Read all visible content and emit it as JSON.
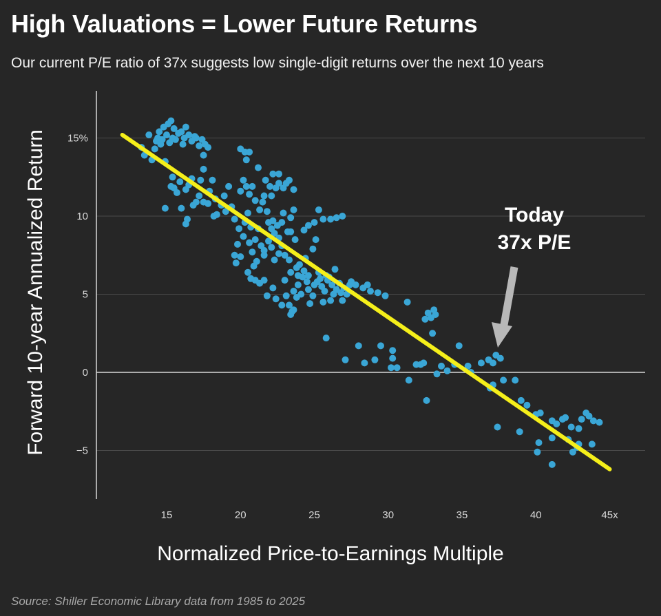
{
  "title": "High Valuations = Lower Future Returns",
  "subtitle": "Our current P/E ratio of 37x suggests low single-digit returns over the next 10 years",
  "source": "Source: Shiller Economic Library data from 1985 to 2025",
  "colors": {
    "background": "#262626",
    "points": "#3aa6d6",
    "trendline": "#f5ef1a",
    "arrow": "#b8b8b8",
    "grid": "#4a4a4a",
    "zero": "#d8d8d8"
  },
  "chart_data": {
    "type": "scatter",
    "xlabel": "Normalized Price-to-Earnings Multiple",
    "ylabel": "Forward 10-year Annualized Return",
    "xlim": [
      10,
      47
    ],
    "ylim": [
      -8,
      18
    ],
    "xticks": [
      {
        "value": 15,
        "label": "15"
      },
      {
        "value": 20,
        "label": "20"
      },
      {
        "value": 25,
        "label": "25"
      },
      {
        "value": 30,
        "label": "30"
      },
      {
        "value": 35,
        "label": "35"
      },
      {
        "value": 40,
        "label": "40"
      },
      {
        "value": 45,
        "label": "45x"
      }
    ],
    "yticks": [
      {
        "value": 15,
        "label": "15%"
      },
      {
        "value": 10,
        "label": "10"
      },
      {
        "value": 5,
        "label": "5"
      },
      {
        "value": 0,
        "label": "0"
      },
      {
        "value": -5,
        "label": "−5"
      }
    ],
    "grid": true,
    "trendline": {
      "x": [
        12,
        45
      ],
      "y": [
        15.2,
        -6.2
      ]
    },
    "annotations": [
      {
        "line1": "Today",
        "line2": "37x P/E",
        "x": 37,
        "y": 1.0
      }
    ],
    "points": [
      [
        13.3,
        14.4
      ],
      [
        13.5,
        13.9
      ],
      [
        13.8,
        15.2
      ],
      [
        14.0,
        13.6
      ],
      [
        14.2,
        14.3
      ],
      [
        14.3,
        14.8
      ],
      [
        14.4,
        15.0
      ],
      [
        14.5,
        15.4
      ],
      [
        14.6,
        14.6
      ],
      [
        14.7,
        14.9
      ],
      [
        14.8,
        15.7
      ],
      [
        14.9,
        13.5
      ],
      [
        15.0,
        15.2
      ],
      [
        15.1,
        15.9
      ],
      [
        15.2,
        14.7
      ],
      [
        15.3,
        16.1
      ],
      [
        15.4,
        15.0
      ],
      [
        15.5,
        15.6
      ],
      [
        15.6,
        14.9
      ],
      [
        15.8,
        15.3
      ],
      [
        16.0,
        15.4
      ],
      [
        16.1,
        14.6
      ],
      [
        16.2,
        15.0
      ],
      [
        16.3,
        15.7
      ],
      [
        16.5,
        15.2
      ],
      [
        16.7,
        14.8
      ],
      [
        16.9,
        15.1
      ],
      [
        17.0,
        15.0
      ],
      [
        17.2,
        14.5
      ],
      [
        17.4,
        14.9
      ],
      [
        17.6,
        14.6
      ],
      [
        17.8,
        14.4
      ],
      [
        17.5,
        13.9
      ],
      [
        17.5,
        13.0
      ],
      [
        17.3,
        12.3
      ],
      [
        17.2,
        11.3
      ],
      [
        17.0,
        10.9
      ],
      [
        16.7,
        12.4
      ],
      [
        16.5,
        12.0
      ],
      [
        16.3,
        11.7
      ],
      [
        15.9,
        12.2
      ],
      [
        15.7,
        11.5
      ],
      [
        15.5,
        11.8
      ],
      [
        15.4,
        12.5
      ],
      [
        15.3,
        11.9
      ],
      [
        16.0,
        10.5
      ],
      [
        16.4,
        9.8
      ],
      [
        16.8,
        10.7
      ],
      [
        14.9,
        10.5
      ],
      [
        16.3,
        9.5
      ],
      [
        17.5,
        10.9
      ],
      [
        17.9,
        11.6
      ],
      [
        18.1,
        12.3
      ],
      [
        18.3,
        11.1
      ],
      [
        18.4,
        10.1
      ],
      [
        18.7,
        10.7
      ],
      [
        18.9,
        11.3
      ],
      [
        19.0,
        10.3
      ],
      [
        18.2,
        10.0
      ],
      [
        17.8,
        10.8
      ],
      [
        19.2,
        11.9
      ],
      [
        19.4,
        10.6
      ],
      [
        19.6,
        9.8
      ],
      [
        19.9,
        9.2
      ],
      [
        19.8,
        8.2
      ],
      [
        19.6,
        7.5
      ],
      [
        19.7,
        7.0
      ],
      [
        20.0,
        7.4
      ],
      [
        20.2,
        8.7
      ],
      [
        20.3,
        9.6
      ],
      [
        20.5,
        10.2
      ],
      [
        20.7,
        9.3
      ],
      [
        20.6,
        8.3
      ],
      [
        20.8,
        7.7
      ],
      [
        21.0,
        8.5
      ],
      [
        21.2,
        9.2
      ],
      [
        21.4,
        8.1
      ],
      [
        21.6,
        7.5
      ],
      [
        21.1,
        7.1
      ],
      [
        20.9,
        6.8
      ],
      [
        20.5,
        6.4
      ],
      [
        20.7,
        6.0
      ],
      [
        21.0,
        5.9
      ],
      [
        21.3,
        5.7
      ],
      [
        21.6,
        5.9
      ],
      [
        20.0,
        11.6
      ],
      [
        20.2,
        12.3
      ],
      [
        20.4,
        11.9
      ],
      [
        20.6,
        11.4
      ],
      [
        20.8,
        11.9
      ],
      [
        21.0,
        11.0
      ],
      [
        21.3,
        10.4
      ],
      [
        21.5,
        10.9
      ],
      [
        21.6,
        11.3
      ],
      [
        21.8,
        10.3
      ],
      [
        21.9,
        9.6
      ],
      [
        22.1,
        9.2
      ],
      [
        22.3,
        8.9
      ],
      [
        22.5,
        9.4
      ],
      [
        22.6,
        8.6
      ],
      [
        22.8,
        8.1
      ],
      [
        22.6,
        7.6
      ],
      [
        22.3,
        7.2
      ],
      [
        21.6,
        7.8
      ],
      [
        21.9,
        8.4
      ],
      [
        22.1,
        8.0
      ],
      [
        20.0,
        14.3
      ],
      [
        20.3,
        14.1
      ],
      [
        20.6,
        14.1
      ],
      [
        20.4,
        13.6
      ],
      [
        21.2,
        13.1
      ],
      [
        21.7,
        12.3
      ],
      [
        22.0,
        11.9
      ],
      [
        22.4,
        11.8
      ],
      [
        22.6,
        12.1
      ],
      [
        22.9,
        11.8
      ],
      [
        23.1,
        12.1
      ],
      [
        23.3,
        12.3
      ],
      [
        23.6,
        11.7
      ],
      [
        22.2,
        12.7
      ],
      [
        22.6,
        12.7
      ],
      [
        22.1,
        11.3
      ],
      [
        23.4,
        9.9
      ],
      [
        23.6,
        10.4
      ],
      [
        23.4,
        9.0
      ],
      [
        23.7,
        8.5
      ],
      [
        23.0,
        7.5
      ],
      [
        23.3,
        7.2
      ],
      [
        22.8,
        9.6
      ],
      [
        22.2,
        9.7
      ],
      [
        22.9,
        10.2
      ],
      [
        21.8,
        4.9
      ],
      [
        22.2,
        5.4
      ],
      [
        22.4,
        4.7
      ],
      [
        22.8,
        4.3
      ],
      [
        23.1,
        4.9
      ],
      [
        23.3,
        4.3
      ],
      [
        23.5,
        3.9
      ],
      [
        23.4,
        3.7
      ],
      [
        23.6,
        4.0
      ],
      [
        23.0,
        5.9
      ],
      [
        23.4,
        6.4
      ],
      [
        23.8,
        6.7
      ],
      [
        24.0,
        6.9
      ],
      [
        24.3,
        6.5
      ],
      [
        24.6,
        6.2
      ],
      [
        24.5,
        5.8
      ],
      [
        24.2,
        6.1
      ],
      [
        23.9,
        5.6
      ],
      [
        23.6,
        5.2
      ],
      [
        23.8,
        4.8
      ],
      [
        24.1,
        5.0
      ],
      [
        24.6,
        5.3
      ],
      [
        24.9,
        4.9
      ],
      [
        25.0,
        5.6
      ],
      [
        25.2,
        5.8
      ],
      [
        25.4,
        6.0
      ],
      [
        25.5,
        5.5
      ],
      [
        25.7,
        5.2
      ],
      [
        25.9,
        5.9
      ],
      [
        26.0,
        6.1
      ],
      [
        26.2,
        5.6
      ],
      [
        26.3,
        5.0
      ],
      [
        26.5,
        5.3
      ],
      [
        26.7,
        5.7
      ],
      [
        26.8,
        5.1
      ],
      [
        27.0,
        5.4
      ],
      [
        27.2,
        5.0
      ],
      [
        27.4,
        5.6
      ],
      [
        26.1,
        4.6
      ],
      [
        25.6,
        4.5
      ],
      [
        24.7,
        4.4
      ],
      [
        26.9,
        4.6
      ],
      [
        25.3,
        6.4
      ],
      [
        25.8,
        6.2
      ],
      [
        26.4,
        6.6
      ],
      [
        27.5,
        5.8
      ],
      [
        27.8,
        5.6
      ],
      [
        28.3,
        5.4
      ],
      [
        28.6,
        5.6
      ],
      [
        28.8,
        5.2
      ],
      [
        29.3,
        5.1
      ],
      [
        29.8,
        4.9
      ],
      [
        31.3,
        4.5
      ],
      [
        32.7,
        3.8
      ],
      [
        32.9,
        3.5
      ],
      [
        33.1,
        4.0
      ],
      [
        33.2,
        3.7
      ],
      [
        32.5,
        3.4
      ],
      [
        33.0,
        2.5
      ],
      [
        32.4,
        0.6
      ],
      [
        32.2,
        0.5
      ],
      [
        33.6,
        0.4
      ],
      [
        34.0,
        0.1
      ],
      [
        33.3,
        -0.1
      ],
      [
        34.5,
        0.5
      ],
      [
        34.8,
        1.7
      ],
      [
        35.4,
        0.4
      ],
      [
        35.6,
        0.0
      ],
      [
        36.3,
        0.6
      ],
      [
        36.8,
        0.8
      ],
      [
        37.1,
        0.6
      ],
      [
        37.3,
        1.1
      ],
      [
        37.6,
        0.9
      ],
      [
        37.1,
        -0.8
      ],
      [
        37.8,
        -0.5
      ],
      [
        38.6,
        -0.5
      ],
      [
        39.0,
        -1.8
      ],
      [
        39.4,
        -2.1
      ],
      [
        40.0,
        -2.7
      ],
      [
        40.3,
        -2.6
      ],
      [
        41.1,
        -3.1
      ],
      [
        41.4,
        -3.3
      ],
      [
        41.8,
        -3.0
      ],
      [
        42.0,
        -2.9
      ],
      [
        42.4,
        -3.5
      ],
      [
        42.9,
        -3.6
      ],
      [
        43.1,
        -3.0
      ],
      [
        43.4,
        -2.6
      ],
      [
        43.6,
        -2.8
      ],
      [
        43.9,
        -3.1
      ],
      [
        44.3,
        -3.2
      ],
      [
        40.2,
        -4.5
      ],
      [
        41.1,
        -4.2
      ],
      [
        42.2,
        -4.3
      ],
      [
        42.9,
        -4.6
      ],
      [
        43.8,
        -4.6
      ],
      [
        40.1,
        -5.1
      ],
      [
        41.1,
        -5.9
      ],
      [
        42.5,
        -5.1
      ],
      [
        42.8,
        -4.8
      ],
      [
        37.4,
        -3.5
      ],
      [
        38.9,
        -3.8
      ],
      [
        36.9,
        -1.0
      ],
      [
        32.6,
        -1.8
      ],
      [
        31.4,
        -0.5
      ],
      [
        31.9,
        0.5
      ],
      [
        30.6,
        0.3
      ],
      [
        30.2,
        0.3
      ],
      [
        30.3,
        0.9
      ],
      [
        30.3,
        1.4
      ],
      [
        29.5,
        1.7
      ],
      [
        29.1,
        0.8
      ],
      [
        28.4,
        0.6
      ],
      [
        28.0,
        1.7
      ],
      [
        27.1,
        0.8
      ],
      [
        25.8,
        2.2
      ],
      [
        24.3,
        9.1
      ],
      [
        24.6,
        9.4
      ],
      [
        25.0,
        9.6
      ],
      [
        25.3,
        10.4
      ],
      [
        25.6,
        9.8
      ],
      [
        26.1,
        9.8
      ],
      [
        26.5,
        9.9
      ],
      [
        26.9,
        10.0
      ],
      [
        25.1,
        8.5
      ],
      [
        24.9,
        7.9
      ],
      [
        23.9,
        6.2
      ],
      [
        24.4,
        7.3
      ],
      [
        23.2,
        9.0
      ]
    ]
  }
}
